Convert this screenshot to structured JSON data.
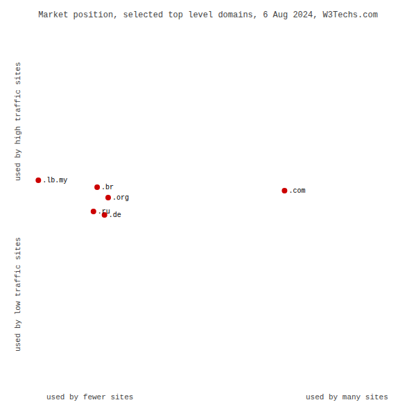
{
  "chart_data": {
    "type": "scatter",
    "title": "Market position, selected top level domains, 6 Aug 2024, W3Techs.com",
    "xlabel": [
      "used by fewer sites",
      "used by many sites"
    ],
    "ylabel": [
      "used by low traffic sites",
      "used by high traffic sites"
    ],
    "labels": [
      ".lb.my",
      ".br",
      ".org",
      ".ru",
      ".de",
      ".com"
    ],
    "x": [
      1,
      17,
      20,
      16,
      19,
      68
    ],
    "values": [
      58,
      56,
      53,
      49,
      48,
      55
    ],
    "color": "#cc0000",
    "xlim": [
      0,
      100
    ],
    "ylim": [
      0,
      100
    ],
    "xticks": [
      0,
      16.666666666666668,
      33.333333333333336,
      50,
      66.66666666666667,
      83.33333333333334,
      100
    ],
    "yticks": [
      0,
      16.666666666666668,
      33.333333333333336,
      50,
      66.66666666666667,
      83.33333333333334,
      100
    ],
    "grid": true,
    "tick_labels": false
  }
}
